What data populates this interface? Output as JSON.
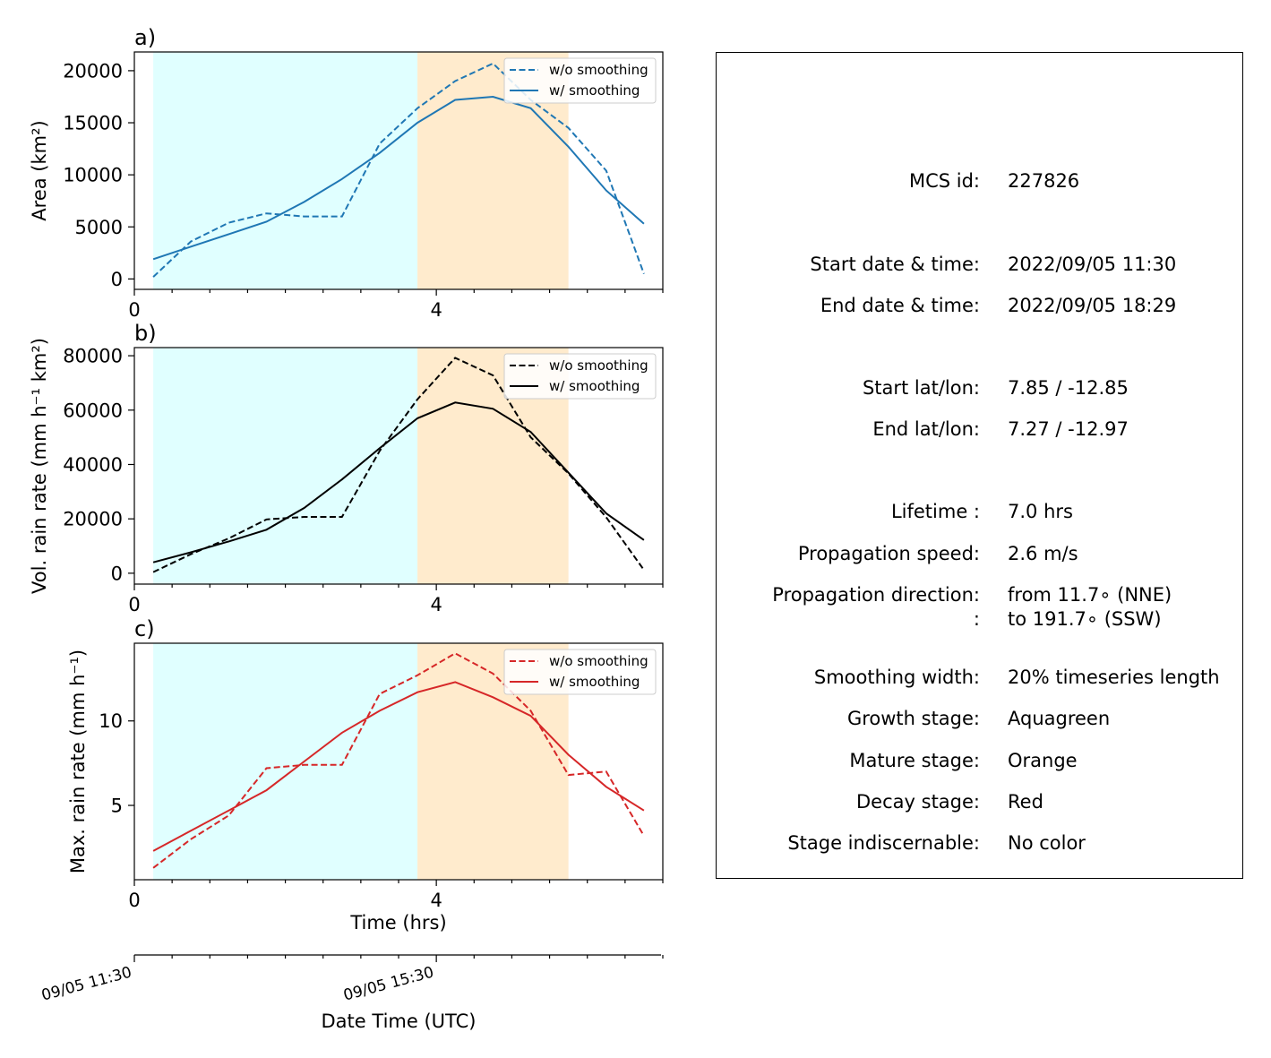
{
  "colors": {
    "growth": "#e0ffff",
    "mature": "#ffebcd",
    "area": "#1f77b4",
    "volrain": "#000000",
    "maxrain": "#d62728"
  },
  "chart_data": [
    {
      "type": "line",
      "panel_label": "a)",
      "ylabel": "Area  (km²)",
      "xlabel": "",
      "xlim": [
        0,
        7
      ],
      "ylim": [
        -1000,
        21800
      ],
      "x_ticks": [
        "0",
        "4"
      ],
      "y_ticks": [
        0,
        5000,
        10000,
        15000,
        20000
      ],
      "y_tick_labels": [
        "0",
        "5000",
        "10000",
        "15000",
        "20000"
      ],
      "legend_position": "top-right",
      "stages": {
        "growth": [
          0.25,
          3.75
        ],
        "mature": [
          3.75,
          5.75
        ]
      },
      "x": [
        0.25,
        0.75,
        1.25,
        1.75,
        2.25,
        2.75,
        3.25,
        3.75,
        4.25,
        4.75,
        5.25,
        5.75,
        6.25,
        6.75
      ],
      "series": [
        {
          "name": "w/o smoothing",
          "style": "dashed",
          "color": "#1f77b4",
          "values": [
            200,
            3600,
            5400,
            6300,
            6000,
            6000,
            13000,
            16400,
            19000,
            20700,
            17200,
            14500,
            10400,
            500
          ]
        },
        {
          "name": "w/ smoothing",
          "style": "solid",
          "color": "#1f77b4",
          "values": [
            1900,
            3100,
            4300,
            5500,
            7400,
            9600,
            12100,
            15000,
            17200,
            17500,
            16400,
            12700,
            8500,
            5300
          ]
        }
      ]
    },
    {
      "type": "line",
      "panel_label": "b)",
      "ylabel": "Vol. rain rate (mm h⁻¹ km²)",
      "xlabel": "",
      "xlim": [
        0,
        7
      ],
      "ylim": [
        -4000,
        83000
      ],
      "x_ticks": [
        "0",
        "4"
      ],
      "y_ticks": [
        0,
        20000,
        40000,
        60000,
        80000
      ],
      "y_tick_labels": [
        "0",
        "20000",
        "40000",
        "60000",
        "80000"
      ],
      "legend_position": "top-right",
      "stages": {
        "growth": [
          0.25,
          3.75
        ],
        "mature": [
          3.75,
          5.75
        ]
      },
      "x": [
        0.25,
        0.75,
        1.25,
        1.75,
        2.25,
        2.75,
        3.25,
        3.75,
        4.25,
        4.75,
        5.25,
        5.75,
        6.25,
        6.75
      ],
      "series": [
        {
          "name": "w/o smoothing",
          "style": "dashed",
          "color": "#000000",
          "values": [
            400,
            7000,
            12800,
            19800,
            20700,
            20700,
            45000,
            64000,
            79200,
            72800,
            50000,
            36700,
            20600,
            1200
          ]
        },
        {
          "name": "w/ smoothing",
          "style": "solid",
          "color": "#000000",
          "values": [
            4000,
            7700,
            11700,
            16000,
            24000,
            34500,
            46000,
            57000,
            62800,
            60500,
            52000,
            37000,
            22000,
            12200
          ]
        }
      ]
    },
    {
      "type": "line",
      "panel_label": "c)",
      "ylabel": "Max. rain rate  (mm h⁻¹)",
      "xlabel": "Time (hrs)",
      "xlim": [
        0,
        7
      ],
      "ylim": [
        0.6,
        14.6
      ],
      "x_ticks": [
        "0",
        "4"
      ],
      "y_ticks": [
        5,
        10
      ],
      "y_tick_labels": [
        "5",
        "10"
      ],
      "legend_position": "top-right",
      "stages": {
        "growth": [
          0.25,
          3.75
        ],
        "mature": [
          3.75,
          5.75
        ]
      },
      "x": [
        0.25,
        0.75,
        1.25,
        1.75,
        2.25,
        2.75,
        3.25,
        3.75,
        4.25,
        4.75,
        5.25,
        5.75,
        6.25,
        6.75
      ],
      "series": [
        {
          "name": "w/o smoothing",
          "style": "dashed",
          "color": "#d62728",
          "values": [
            1.3,
            3.0,
            4.4,
            7.2,
            7.4,
            7.4,
            11.6,
            12.7,
            14.0,
            12.8,
            10.6,
            6.8,
            7.0,
            3.2
          ]
        },
        {
          "name": "w/ smoothing",
          "style": "solid",
          "color": "#d62728",
          "values": [
            2.3,
            3.5,
            4.7,
            5.9,
            7.6,
            9.3,
            10.6,
            11.7,
            12.3,
            11.4,
            10.3,
            8.0,
            6.1,
            4.7
          ]
        }
      ]
    }
  ],
  "date_axis": {
    "label": "Date Time (UTC)",
    "tick_labels": [
      "09/05 11:30",
      "09/05 15:30"
    ]
  },
  "info": {
    "mcs_id": {
      "label": "MCS id:",
      "value": "227826"
    },
    "start_time": {
      "label": "Start date & time:",
      "value": "2022/09/05 11:30"
    },
    "end_time": {
      "label": "End date & time:",
      "value": "2022/09/05 18:29"
    },
    "start_latlon": {
      "label": "Start lat/lon:",
      "value": "7.85 / -12.85"
    },
    "end_latlon": {
      "label": "End lat/lon:",
      "value": "7.27 / -12.97"
    },
    "lifetime": {
      "label": "Lifetime :",
      "value": "7.0 hrs"
    },
    "speed": {
      "label": "Propagation speed:",
      "value": "2.6 m/s"
    },
    "direction": {
      "label": "Propagation direction:",
      "value": "from  11.7∘ (NNE)"
    },
    "direction2": {
      "label": ":",
      "value": "to   191.7∘ (SSW)"
    },
    "smoothing": {
      "label": "Smoothing width:",
      "value": "20% timeseries length"
    },
    "growth": {
      "label": "Growth stage:",
      "value": "Aquagreen"
    },
    "mature": {
      "label": "Mature stage:",
      "value": "Orange"
    },
    "decay": {
      "label": "Decay stage:",
      "value": "Red"
    },
    "indiscernable": {
      "label": "Stage indiscernable:",
      "value": "No color"
    }
  }
}
